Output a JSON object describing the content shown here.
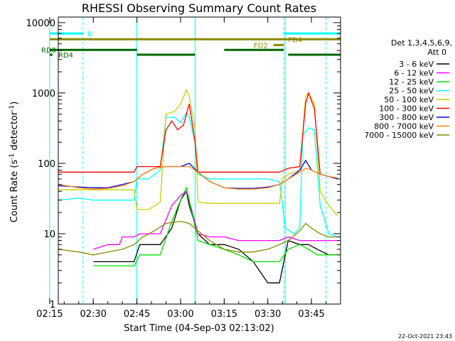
{
  "chart_data": {
    "type": "line",
    "title": "RHESSI Observing Summary Count Rates",
    "xlabel": "Start Time (04-Sep-03 02:13:02)",
    "ylabel": "Count Rate (s⁻¹ detector⁻¹)",
    "ylabel_main": "Count Rate (s",
    "ylabel_sup1": "-1",
    "ylabel_mid": " detector",
    "ylabel_sup2": "-1",
    "ylabel_end": ")",
    "y_scale": "log",
    "ylim": [
      1,
      12000
    ],
    "xlim_minutes": [
      2.97,
      100.0
    ],
    "x_ticks": [
      {
        "label": "02:15",
        "minute": 0
      },
      {
        "label": "02:30",
        "minute": 15
      },
      {
        "label": "02:45",
        "minute": 30
      },
      {
        "label": "03:00",
        "minute": 45
      },
      {
        "label": "03:15",
        "minute": 60
      },
      {
        "label": "03:30",
        "minute": 75
      },
      {
        "label": "03:45",
        "minute": 90
      }
    ],
    "y_ticks": [
      {
        "label": "1",
        "value": 1
      },
      {
        "label": "10",
        "value": 10
      },
      {
        "label": "100",
        "value": 100
      },
      {
        "label": "1000",
        "value": 1000
      },
      {
        "label": "10000",
        "value": 10000
      }
    ],
    "legend_header": [
      "Det 1,3,4,5,6,9,",
      "Att 0"
    ],
    "legend_placement": "right",
    "footer": "22-Oct-2021 23:43",
    "series": [
      {
        "name": "3 - 6 keV",
        "color": "#000000",
        "points": [
          [
            15,
            4
          ],
          [
            20,
            4
          ],
          [
            25,
            4
          ],
          [
            29,
            4
          ],
          [
            31,
            7
          ],
          [
            34,
            7
          ],
          [
            38,
            7
          ],
          [
            42,
            12
          ],
          [
            45,
            30
          ],
          [
            47,
            40
          ],
          [
            48,
            25
          ],
          [
            51,
            10
          ],
          [
            55,
            7
          ],
          [
            60,
            7
          ],
          [
            65,
            6
          ],
          [
            70,
            4
          ],
          [
            75,
            2
          ],
          [
            79,
            2
          ],
          [
            82,
            8
          ],
          [
            86,
            7
          ],
          [
            89,
            7
          ],
          [
            92,
            6
          ],
          [
            96,
            5
          ],
          [
            99,
            5
          ]
        ]
      },
      {
        "name": "6 - 12 keV",
        "color": "#ff00ff",
        "points": [
          [
            15,
            6
          ],
          [
            20,
            7
          ],
          [
            24,
            7
          ],
          [
            25,
            9
          ],
          [
            29,
            9
          ],
          [
            31,
            10
          ],
          [
            35,
            10
          ],
          [
            38,
            10
          ],
          [
            42,
            25
          ],
          [
            45,
            35
          ],
          [
            47,
            40
          ],
          [
            48,
            30
          ],
          [
            51,
            10
          ],
          [
            55,
            9
          ],
          [
            60,
            9
          ],
          [
            65,
            8
          ],
          [
            70,
            8
          ],
          [
            75,
            8
          ],
          [
            79,
            8
          ],
          [
            82,
            9
          ],
          [
            86,
            8
          ],
          [
            89,
            8
          ],
          [
            92,
            8
          ],
          [
            96,
            8
          ],
          [
            99,
            8
          ]
        ]
      },
      {
        "name": "12 - 25 keV",
        "color": "#00dd00",
        "points": [
          [
            15,
            3.5
          ],
          [
            20,
            3.5
          ],
          [
            25,
            3.5
          ],
          [
            29,
            3.5
          ],
          [
            31,
            5
          ],
          [
            35,
            5
          ],
          [
            38,
            5
          ],
          [
            42,
            15
          ],
          [
            45,
            30
          ],
          [
            47,
            45
          ],
          [
            48,
            30
          ],
          [
            51,
            8
          ],
          [
            55,
            7
          ],
          [
            60,
            6
          ],
          [
            65,
            5
          ],
          [
            70,
            4
          ],
          [
            75,
            4
          ],
          [
            79,
            4
          ],
          [
            82,
            6
          ],
          [
            86,
            7
          ],
          [
            89,
            6
          ],
          [
            92,
            5
          ],
          [
            96,
            5
          ],
          [
            99,
            5
          ]
        ]
      },
      {
        "name": "25 - 50 keV",
        "color": "#00ffff",
        "points": [
          [
            3,
            30
          ],
          [
            10,
            32
          ],
          [
            15,
            30
          ],
          [
            20,
            30
          ],
          [
            25,
            30
          ],
          [
            29,
            30
          ],
          [
            30,
            60
          ],
          [
            34,
            60
          ],
          [
            38,
            80
          ],
          [
            40,
            450
          ],
          [
            43,
            450
          ],
          [
            45,
            380
          ],
          [
            47,
            520
          ],
          [
            48,
            450
          ],
          [
            50,
            200
          ],
          [
            51,
            70
          ],
          [
            55,
            60
          ],
          [
            60,
            60
          ],
          [
            65,
            60
          ],
          [
            70,
            60
          ],
          [
            75,
            60
          ],
          [
            79,
            55
          ],
          [
            81,
            12
          ],
          [
            84,
            10
          ],
          [
            86,
            12
          ],
          [
            87,
            250
          ],
          [
            89,
            320
          ],
          [
            91,
            300
          ],
          [
            93,
            25
          ],
          [
            96,
            10
          ],
          [
            99,
            9
          ]
        ]
      },
      {
        "name": "50 - 100 keV",
        "color": "#cccc00",
        "points": [
          [
            3,
            42
          ],
          [
            10,
            42
          ],
          [
            15,
            42
          ],
          [
            20,
            42
          ],
          [
            25,
            42
          ],
          [
            29,
            42
          ],
          [
            30,
            22
          ],
          [
            34,
            22
          ],
          [
            38,
            28
          ],
          [
            40,
            500
          ],
          [
            43,
            550
          ],
          [
            45,
            700
          ],
          [
            47,
            1100
          ],
          [
            48,
            900
          ],
          [
            50,
            300
          ],
          [
            51,
            28
          ],
          [
            55,
            27
          ],
          [
            60,
            27
          ],
          [
            65,
            27
          ],
          [
            70,
            27
          ],
          [
            75,
            27
          ],
          [
            79,
            27
          ],
          [
            80,
            60
          ],
          [
            82,
            70
          ],
          [
            86,
            80
          ],
          [
            88,
            900
          ],
          [
            89,
            1000
          ],
          [
            91,
            700
          ],
          [
            93,
            40
          ],
          [
            96,
            25
          ],
          [
            99,
            18
          ]
        ]
      },
      {
        "name": "100 - 300 keV",
        "color": "#ff0000",
        "points": [
          [
            3,
            75
          ],
          [
            10,
            75
          ],
          [
            15,
            75
          ],
          [
            20,
            75
          ],
          [
            25,
            75
          ],
          [
            29,
            75
          ],
          [
            30,
            90
          ],
          [
            34,
            90
          ],
          [
            38,
            90
          ],
          [
            40,
            300
          ],
          [
            42,
            400
          ],
          [
            44,
            300
          ],
          [
            46,
            350
          ],
          [
            48,
            700
          ],
          [
            50,
            200
          ],
          [
            51,
            75
          ],
          [
            55,
            75
          ],
          [
            60,
            75
          ],
          [
            65,
            75
          ],
          [
            70,
            75
          ],
          [
            75,
            75
          ],
          [
            79,
            75
          ],
          [
            82,
            85
          ],
          [
            86,
            90
          ],
          [
            88,
            700
          ],
          [
            89,
            1000
          ],
          [
            91,
            600
          ],
          [
            93,
            70
          ],
          [
            96,
            65
          ],
          [
            99,
            60
          ]
        ]
      },
      {
        "name": "300 - 800 keV",
        "color": "#0000ee",
        "points": [
          [
            3,
            48
          ],
          [
            10,
            46
          ],
          [
            15,
            45
          ],
          [
            20,
            45
          ],
          [
            25,
            50
          ],
          [
            29,
            55
          ],
          [
            32,
            70
          ],
          [
            36,
            85
          ],
          [
            40,
            90
          ],
          [
            45,
            90
          ],
          [
            48,
            100
          ],
          [
            51,
            75
          ],
          [
            55,
            55
          ],
          [
            60,
            45
          ],
          [
            65,
            44
          ],
          [
            70,
            44
          ],
          [
            75,
            46
          ],
          [
            79,
            50
          ],
          [
            82,
            60
          ],
          [
            86,
            80
          ],
          [
            88,
            110
          ],
          [
            90,
            80
          ],
          [
            93,
            70
          ],
          [
            96,
            65
          ],
          [
            99,
            60
          ]
        ]
      },
      {
        "name": "800 - 7000 keV",
        "color": "#ff8800",
        "points": [
          [
            3,
            50
          ],
          [
            10,
            45
          ],
          [
            15,
            43
          ],
          [
            20,
            44
          ],
          [
            25,
            48
          ],
          [
            29,
            55
          ],
          [
            32,
            70
          ],
          [
            36,
            85
          ],
          [
            40,
            90
          ],
          [
            45,
            90
          ],
          [
            48,
            90
          ],
          [
            51,
            75
          ],
          [
            55,
            55
          ],
          [
            60,
            45
          ],
          [
            65,
            43
          ],
          [
            70,
            43
          ],
          [
            75,
            45
          ],
          [
            79,
            50
          ],
          [
            82,
            60
          ],
          [
            86,
            75
          ],
          [
            88,
            85
          ],
          [
            90,
            80
          ],
          [
            93,
            70
          ],
          [
            96,
            65
          ],
          [
            99,
            62
          ]
        ]
      },
      {
        "name": "7000 - 15000 keV",
        "color": "#888800",
        "points": [
          [
            3,
            6
          ],
          [
            10,
            5.5
          ],
          [
            15,
            5
          ],
          [
            20,
            5.5
          ],
          [
            25,
            6
          ],
          [
            29,
            7
          ],
          [
            32,
            9
          ],
          [
            36,
            11
          ],
          [
            40,
            14
          ],
          [
            45,
            15
          ],
          [
            48,
            14
          ],
          [
            51,
            11
          ],
          [
            55,
            8
          ],
          [
            60,
            6
          ],
          [
            65,
            5.5
          ],
          [
            70,
            5.5
          ],
          [
            75,
            6
          ],
          [
            79,
            7
          ],
          [
            82,
            8
          ],
          [
            86,
            11
          ],
          [
            88,
            14
          ],
          [
            90,
            12
          ],
          [
            93,
            10
          ],
          [
            96,
            9
          ],
          [
            99,
            9
          ]
        ]
      }
    ],
    "annotations": [
      {
        "label": "N",
        "color": "#00ffff",
        "y": 7000,
        "segments": [
          [
            0,
            11.5
          ],
          [
            80.5,
            100
          ]
        ]
      },
      {
        "label": "FD4",
        "color": "#888800",
        "y": 5800,
        "segments": [
          [
            0,
            100
          ]
        ]
      },
      {
        "label": "FD2",
        "color": "#888800",
        "y": 4800,
        "segments": [
          [
            77,
            80.5
          ]
        ]
      },
      {
        "label": "RD0",
        "color": "#006600",
        "y": 4100,
        "segments": [
          [
            0,
            30
          ],
          [
            60,
            80.5
          ]
        ]
      },
      {
        "label": "RD4",
        "color": "#006600",
        "y": 3500,
        "segments": [
          [
            0,
            1
          ],
          [
            30,
            50
          ],
          [
            82,
            100
          ]
        ]
      }
    ],
    "dashed_lines_minutes": [
      11.5,
      30,
      50,
      80.5,
      95
    ],
    "solid_lines_minutes": [
      0,
      30,
      50,
      81
    ]
  }
}
